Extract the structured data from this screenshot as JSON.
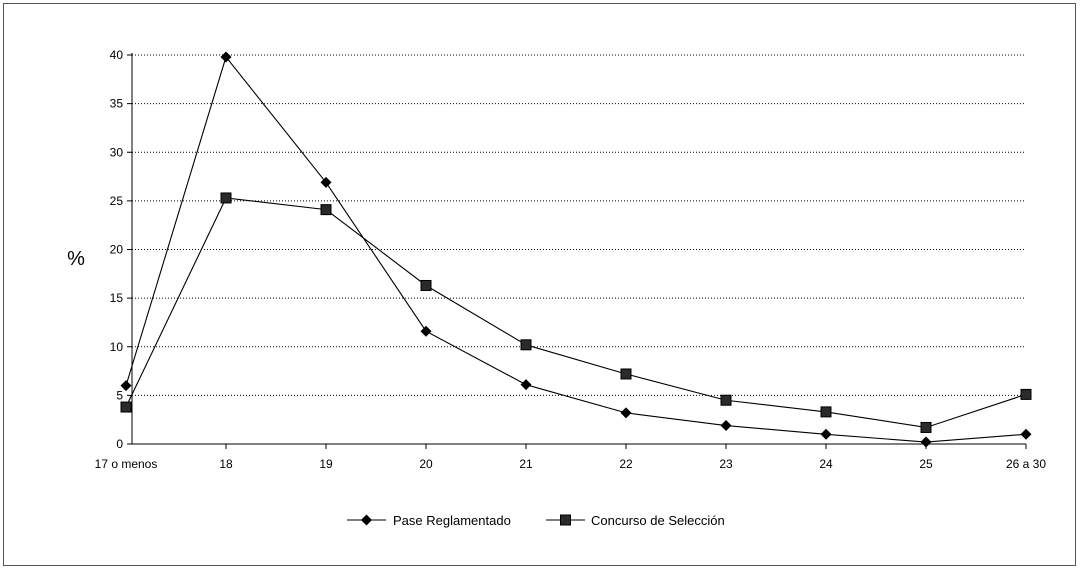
{
  "chart_data": {
    "type": "line",
    "ylabel": "%",
    "xlabel": "",
    "title": "",
    "categories": [
      "17 o menos",
      "18",
      "19",
      "20",
      "21",
      "22",
      "23",
      "24",
      "25",
      "26 a 30"
    ],
    "ylim": [
      0,
      40
    ],
    "yticks": [
      0,
      5,
      10,
      15,
      20,
      25,
      30,
      35,
      40
    ],
    "grid": "horizontal-dotted",
    "legend_position": "bottom",
    "series": [
      {
        "name": "Pase Reglamentado",
        "marker": "diamond",
        "color": "#000000",
        "values": [
          6,
          39.8,
          26.9,
          11.6,
          6.1,
          3.2,
          1.9,
          1.0,
          0.2,
          1.0
        ]
      },
      {
        "name": "Concurso de Selección",
        "marker": "square",
        "color": "#000000",
        "values": [
          3.8,
          25.3,
          24.1,
          16.3,
          10.2,
          7.2,
          4.5,
          3.3,
          1.7,
          5.1
        ]
      }
    ]
  }
}
